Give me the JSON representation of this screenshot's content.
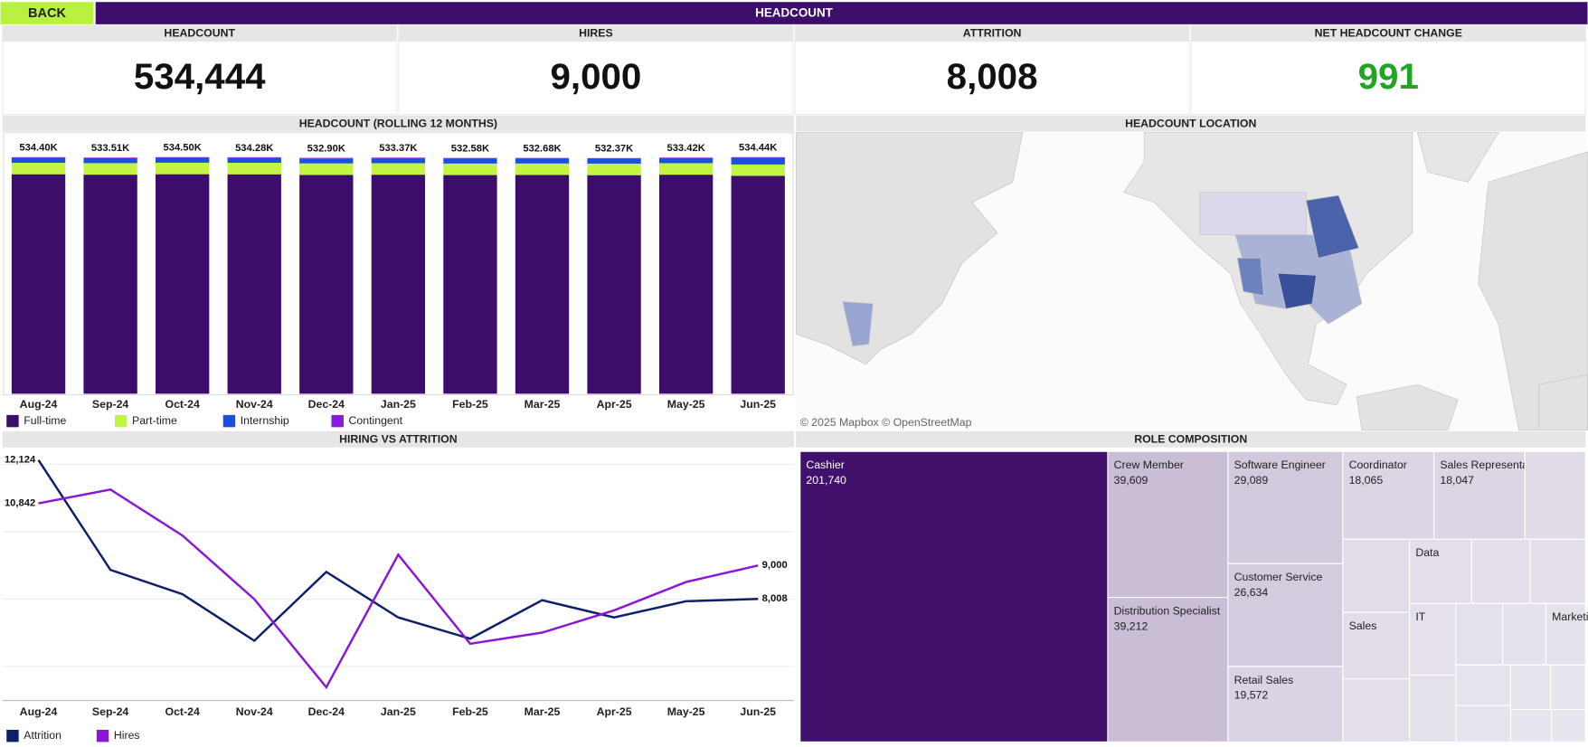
{
  "header": {
    "back": "BACK",
    "title": "HEADCOUNT"
  },
  "kpis": [
    {
      "label": "HEADCOUNT",
      "value": "534,444",
      "color": "#111111"
    },
    {
      "label": "HIRES",
      "value": "9,000",
      "color": "#111111"
    },
    {
      "label": "ATTRITION",
      "value": "8,008",
      "color": "#111111"
    },
    {
      "label": "NET HEADCOUNT CHANGE",
      "value": "991",
      "color": "#22a522"
    }
  ],
  "map": {
    "title": "HEADCOUNT LOCATION",
    "attribution": "© 2025 Mapbox © OpenStreetMap"
  },
  "chart_data": [
    {
      "type": "stacked_bar",
      "title": "HEADCOUNT (ROLLING 12 MONTHS)",
      "categories": [
        "Aug-24",
        "Sep-24",
        "Oct-24",
        "Nov-24",
        "Dec-24",
        "Jan-25",
        "Feb-25",
        "Mar-25",
        "Apr-25",
        "May-25",
        "Jun-25"
      ],
      "series": [
        {
          "name": "Full-time",
          "color": "#3d0d6b",
          "values": [
            495900,
            495010,
            496000,
            495780,
            494400,
            494870,
            494080,
            494180,
            493870,
            494920,
            492440
          ]
        },
        {
          "name": "Part-time",
          "color": "#c2f542",
          "values": [
            26000,
            26000,
            26000,
            26000,
            26000,
            26000,
            26000,
            26000,
            26000,
            26000,
            25500
          ]
        },
        {
          "name": "Internship",
          "color": "#1a4fe0",
          "values": [
            11000,
            11000,
            11000,
            11000,
            11000,
            11000,
            11000,
            11000,
            11000,
            11000,
            15000
          ]
        },
        {
          "name": "Contingent",
          "color": "#8a1be0",
          "values": [
            1500,
            1500,
            1500,
            1500,
            1500,
            1500,
            1500,
            1500,
            1500,
            1500,
            1500
          ]
        }
      ],
      "totals": [
        534400,
        533510,
        534500,
        534280,
        532900,
        533370,
        532580,
        532680,
        532370,
        533420,
        534440
      ],
      "total_labels": [
        "534.40K",
        "533.51K",
        "534.50K",
        "534.28K",
        "532.90K",
        "533.37K",
        "532.58K",
        "532.68K",
        "532.37K",
        "533.42K",
        "534.44K"
      ],
      "ylim": [
        0,
        590000
      ],
      "legend": "bottom-left"
    },
    {
      "type": "line",
      "title": "HIRING VS ATTRITION",
      "categories": [
        "Aug-24",
        "Sep-24",
        "Oct-24",
        "Nov-24",
        "Dec-24",
        "Jan-25",
        "Feb-25",
        "Mar-25",
        "Apr-25",
        "May-25",
        "Jun-25"
      ],
      "series": [
        {
          "name": "Attrition",
          "color": "#0d1f6b",
          "values": [
            12124,
            8870,
            8150,
            6770,
            8810,
            7460,
            6830,
            7970,
            7460,
            7940,
            8008
          ],
          "value_labels": [
            "12,124",
            null,
            null,
            null,
            null,
            null,
            null,
            null,
            null,
            null,
            "8,008"
          ]
        },
        {
          "name": "Hires",
          "color": "#8a16d6",
          "values": [
            10842,
            11250,
            9890,
            8000,
            5390,
            9320,
            6680,
            7010,
            7670,
            8510,
            9000
          ],
          "value_labels": [
            "10,842",
            null,
            null,
            null,
            null,
            null,
            null,
            null,
            null,
            null,
            "9,000"
          ]
        }
      ],
      "ylim": [
        5000,
        12500
      ],
      "yticks": [
        6000,
        8000,
        10000,
        12000
      ],
      "grid": true,
      "legend": "bottom-left"
    },
    {
      "type": "treemap",
      "title": "ROLE COMPOSITION",
      "categories": [
        "Cashier",
        "Crew Member",
        "Distribution Specialist",
        "Software Engineer",
        "Customer Service",
        "Retail Sales",
        "Coordinator",
        "Sales Representative",
        null,
        null,
        "Sales",
        null,
        "Data",
        null,
        null,
        "IT",
        null,
        null,
        null,
        "Marketing",
        null,
        null,
        null,
        null,
        null,
        null
      ],
      "values": [
        201740,
        39609,
        39212,
        29089,
        26634,
        19572,
        18065,
        18047,
        12000,
        11000,
        10000,
        9500,
        9000,
        8500,
        8000,
        7500,
        7000,
        6500,
        6000,
        5500,
        5000,
        4500,
        4000,
        3500,
        3000,
        2500
      ],
      "value_labels": [
        "201,740",
        "39,609",
        "39,212",
        "29,089",
        "26,634",
        "19,572",
        "18,065",
        "18,047",
        null,
        null,
        null,
        null,
        null,
        null,
        null,
        null,
        null,
        null,
        null,
        null,
        null,
        null,
        null,
        null,
        null,
        null
      ],
      "color_range": [
        "#ebe8f0",
        "#40106b"
      ]
    }
  ]
}
